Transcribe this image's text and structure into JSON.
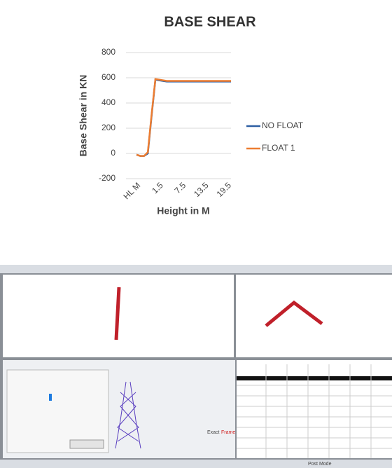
{
  "chart_data": {
    "type": "line",
    "title": "BASE SHEAR",
    "x_label": "Height in M",
    "y_label": "Base Shear in KN",
    "categories": [
      "HL M",
      null,
      null,
      null,
      null,
      null,
      "1.5",
      null,
      null,
      null,
      null,
      null,
      "7.5",
      null,
      null,
      null,
      null,
      null,
      "13.5",
      null,
      null,
      null,
      null,
      null,
      "19.5",
      null
    ],
    "series": [
      {
        "name": "NO FLOAT",
        "color": "#2e5fa3",
        "values": [
          -10,
          -20,
          -20,
          0,
          300,
          585,
          580,
          575,
          570,
          570,
          570,
          570,
          570,
          570,
          570,
          570,
          570,
          570,
          570,
          570,
          570,
          570,
          570,
          570,
          570,
          570
        ]
      },
      {
        "name": "FLOAT 1",
        "color": "#ed7d31",
        "values": [
          -10,
          -20,
          -20,
          10,
          310,
          590,
          585,
          580,
          575,
          575,
          575,
          575,
          575,
          575,
          575,
          575,
          575,
          575,
          575,
          575,
          575,
          575,
          575,
          575,
          575,
          575
        ]
      }
    ],
    "ylim": [
      -200,
      800
    ],
    "yticks": [
      -200,
      0,
      200,
      400,
      600,
      800
    ],
    "grid": true,
    "legend": "right"
  },
  "screenshot": {
    "exact": "Exact",
    "frame_stress": "Frame Stress",
    "status": "Post Mode"
  }
}
